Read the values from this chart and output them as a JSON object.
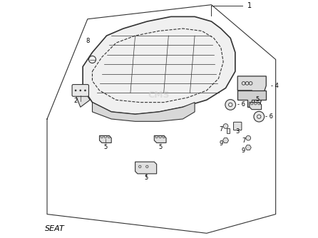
{
  "title": "SEAT",
  "background_color": "#ffffff",
  "border_color": "#000000",
  "line_color": "#333333",
  "text_color": "#000000",
  "watermark": "CMS",
  "figsize": [
    4.46,
    3.34
  ],
  "dpi": 100
}
